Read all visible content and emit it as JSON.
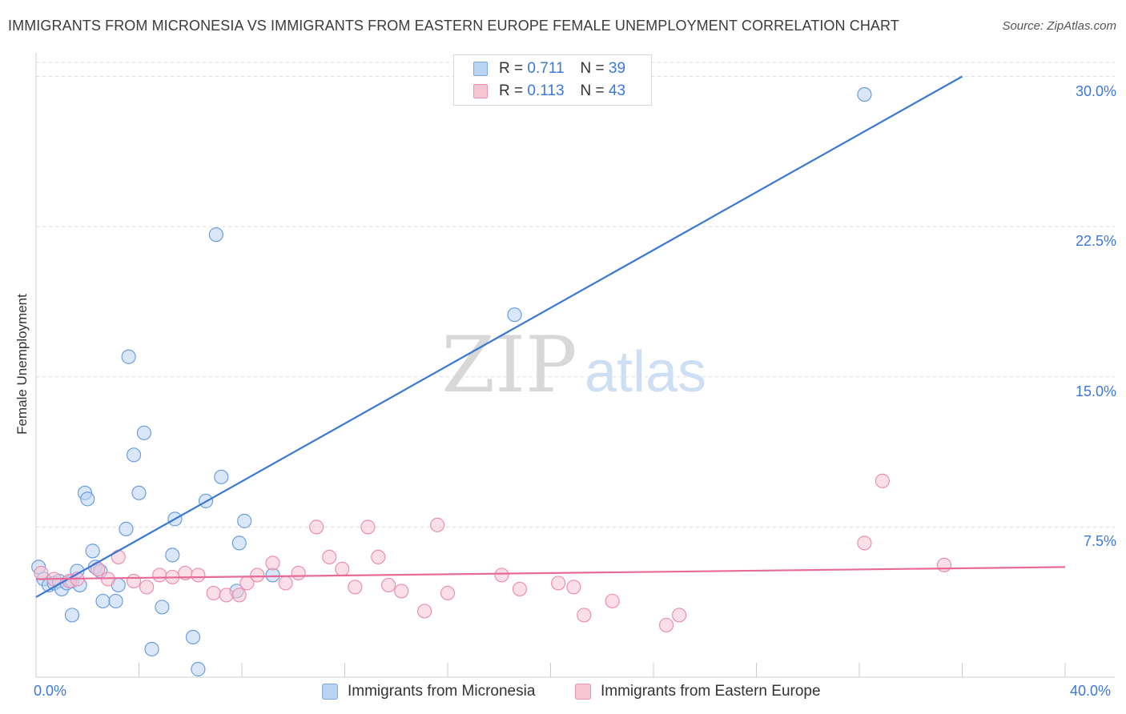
{
  "title": "IMMIGRANTS FROM MICRONESIA VS IMMIGRANTS FROM EASTERN EUROPE FEMALE UNEMPLOYMENT CORRELATION CHART",
  "source": "Source: ZipAtlas.com",
  "watermark": {
    "zip": "ZIP",
    "atlas": "atlas"
  },
  "colors": {
    "blue": "#3a78d4",
    "blue_fill": "#b9d3f3",
    "pink": "#e86a97",
    "pink_fill": "#f7c4d4",
    "tick_text": "#3b78d8"
  },
  "legend": {
    "rows": [
      {
        "r_label": "R =",
        "r_value": "0.711",
        "n_label": "N =",
        "n_value": "39"
      },
      {
        "r_label": "R =",
        "r_value": "0.113",
        "n_label": "N =",
        "n_value": "43"
      }
    ],
    "series_names": [
      "Immigrants from Micronesia",
      "Immigrants from Eastern Europe"
    ]
  },
  "chart_data": {
    "type": "scatter",
    "title": "IMMIGRANTS FROM MICRONESIA VS IMMIGRANTS FROM EASTERN EUROPE FEMALE UNEMPLOYMENT CORRELATION CHART",
    "xlabel": "",
    "ylabel": "Female Unemployment",
    "xlim": [
      0,
      40
    ],
    "ylim": [
      0,
      30.7
    ],
    "x_tick_labels": [
      "0.0%",
      "40.0%"
    ],
    "y_ticks": [
      7.5,
      15.0,
      22.5,
      30.0
    ],
    "y_tick_labels": [
      "7.5%",
      "15.0%",
      "22.5%",
      "30.0%"
    ],
    "grid": true,
    "series": [
      {
        "name": "Immigrants from Micronesia",
        "r": 0.711,
        "n": 39,
        "trend": {
          "x": [
            0,
            36.0
          ],
          "y": [
            4.0,
            30.0
          ]
        },
        "points": [
          [
            0.1,
            5.5
          ],
          [
            0.3,
            4.9
          ],
          [
            0.5,
            4.6
          ],
          [
            0.7,
            4.7
          ],
          [
            0.9,
            4.8
          ],
          [
            1.0,
            4.4
          ],
          [
            1.2,
            4.7
          ],
          [
            1.4,
            4.8
          ],
          [
            1.4,
            3.1
          ],
          [
            1.6,
            5.3
          ],
          [
            1.7,
            4.6
          ],
          [
            1.9,
            9.2
          ],
          [
            2.0,
            8.9
          ],
          [
            2.2,
            6.3
          ],
          [
            2.3,
            5.5
          ],
          [
            2.5,
            5.3
          ],
          [
            2.6,
            3.8
          ],
          [
            3.1,
            3.8
          ],
          [
            3.2,
            4.6
          ],
          [
            3.5,
            7.4
          ],
          [
            3.6,
            16.0
          ],
          [
            3.8,
            11.1
          ],
          [
            4.0,
            9.2
          ],
          [
            4.2,
            12.2
          ],
          [
            4.5,
            1.4
          ],
          [
            4.9,
            3.5
          ],
          [
            5.3,
            6.1
          ],
          [
            5.4,
            7.9
          ],
          [
            6.1,
            2.0
          ],
          [
            6.3,
            0.4
          ],
          [
            6.6,
            8.8
          ],
          [
            7.0,
            22.1
          ],
          [
            7.2,
            10.0
          ],
          [
            7.8,
            4.3
          ],
          [
            7.9,
            6.7
          ],
          [
            8.1,
            7.8
          ],
          [
            9.2,
            5.1
          ],
          [
            18.6,
            18.1
          ],
          [
            32.2,
            29.1
          ]
        ]
      },
      {
        "name": "Immigrants from Eastern Europe",
        "r": 0.113,
        "n": 43,
        "trend": {
          "x": [
            0,
            40
          ],
          "y": [
            4.9,
            5.5
          ]
        },
        "points": [
          [
            0.2,
            5.2
          ],
          [
            0.7,
            4.9
          ],
          [
            1.3,
            4.8
          ],
          [
            1.6,
            4.9
          ],
          [
            2.4,
            5.4
          ],
          [
            2.8,
            4.9
          ],
          [
            3.2,
            6.0
          ],
          [
            3.8,
            4.8
          ],
          [
            4.3,
            4.5
          ],
          [
            4.8,
            5.1
          ],
          [
            5.3,
            5.0
          ],
          [
            5.8,
            5.2
          ],
          [
            6.3,
            5.1
          ],
          [
            6.9,
            4.2
          ],
          [
            7.4,
            4.1
          ],
          [
            7.9,
            4.1
          ],
          [
            8.2,
            4.7
          ],
          [
            8.6,
            5.1
          ],
          [
            9.2,
            5.7
          ],
          [
            9.7,
            4.7
          ],
          [
            10.2,
            5.2
          ],
          [
            10.9,
            7.5
          ],
          [
            11.4,
            6.0
          ],
          [
            11.9,
            5.4
          ],
          [
            12.4,
            4.5
          ],
          [
            12.9,
            7.5
          ],
          [
            13.3,
            6.0
          ],
          [
            13.7,
            4.6
          ],
          [
            14.2,
            4.3
          ],
          [
            15.1,
            3.3
          ],
          [
            15.6,
            7.6
          ],
          [
            16.0,
            4.2
          ],
          [
            18.1,
            5.1
          ],
          [
            18.8,
            4.4
          ],
          [
            20.3,
            4.7
          ],
          [
            20.9,
            4.5
          ],
          [
            21.3,
            3.1
          ],
          [
            22.4,
            3.8
          ],
          [
            24.5,
            2.6
          ],
          [
            25.0,
            3.1
          ],
          [
            32.2,
            6.7
          ],
          [
            32.9,
            9.8
          ],
          [
            35.3,
            5.6
          ]
        ]
      }
    ]
  }
}
